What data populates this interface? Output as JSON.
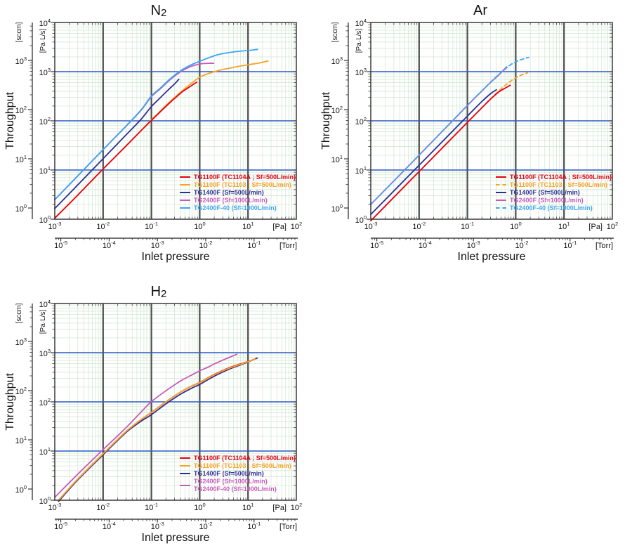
{
  "colors": {
    "red": "#e60012",
    "orange": "#f9a226",
    "navy": "#2e2e96",
    "magenta": "#c75ab8",
    "lightblue": "#3da4f2",
    "refline": "#2c59c3",
    "grid_minor": "#cde6cd",
    "grid_major": "#96c896",
    "decade_line": "#4d4d4d",
    "border": "#2b2b2b"
  },
  "axes": {
    "x_label": "Inlet pressure",
    "y_label": "Throughput",
    "x_unit_pa": "[Pa]",
    "x_unit_torr": "[Torr]",
    "y_unit_outer": "[sccm]",
    "y_unit_inner": "[Pa·L/s]",
    "x_ticks_pa": [
      -3,
      -2,
      -1,
      0,
      1,
      2
    ],
    "x_ticks_torr": [
      -5,
      -4,
      -3,
      -2,
      -1
    ],
    "y_ticks_inner": [
      0,
      1,
      2,
      3,
      4
    ],
    "y_ticks_outer": [
      0,
      1,
      2,
      3
    ],
    "sccm_factor": 1.69,
    "pa_per_torr": 133.322,
    "ref_lines_paLs": [
      10,
      100,
      1000
    ],
    "x_range_pa": [
      0.001,
      100
    ],
    "y_range_paLs": [
      1,
      10000
    ],
    "scale": "log-log",
    "grid": "on"
  },
  "chart_data": [
    {
      "id": "n2",
      "type": "line",
      "title_main": "N",
      "title_sub": "2",
      "legend": [
        {
          "label": "TG1100F (TC1104A ; Sf=500L/min)",
          "color": "red",
          "style": "solid"
        },
        {
          "label": "TG1100F (TC1103   ; Sf=500L/min)",
          "color": "orange",
          "style": "solid"
        },
        {
          "label": "TG1400F (Sf=500L/min)",
          "color": "navy",
          "style": "solid"
        },
        {
          "label": "TG2400F (Sf=1000L/min)",
          "color": "magenta",
          "style": "solid"
        },
        {
          "label": "TG2400F-40 (Sf=1000L/min)",
          "color": "lightblue",
          "style": "solid"
        }
      ],
      "series": [
        {
          "name": "TG2400F",
          "color": "magenta",
          "dash": "solid",
          "points": [
            [
              0.001,
              2.5
            ],
            [
              0.003,
              7.6
            ],
            [
              0.01,
              26
            ],
            [
              0.03,
              78
            ],
            [
              0.06,
              160
            ],
            [
              0.1,
              310
            ],
            [
              0.15,
              440
            ],
            [
              0.25,
              700
            ],
            [
              0.4,
              990
            ],
            [
              0.6,
              1230
            ],
            [
              0.8,
              1360
            ],
            [
              1.1,
              1450
            ],
            [
              1.5,
              1480
            ],
            [
              1.95,
              1480
            ]
          ]
        },
        {
          "name": "TG2400F-40",
          "color": "lightblue",
          "dash": "solid",
          "points": [
            [
              0.001,
              2.5
            ],
            [
              0.003,
              7.6
            ],
            [
              0.01,
              26
            ],
            [
              0.03,
              79
            ],
            [
              0.06,
              163
            ],
            [
              0.1,
              320
            ],
            [
              0.15,
              455
            ],
            [
              0.25,
              730
            ],
            [
              0.4,
              1040
            ],
            [
              0.6,
              1310
            ],
            [
              0.9,
              1560
            ],
            [
              1.3,
              1800
            ],
            [
              2,
              2100
            ],
            [
              3,
              2330
            ],
            [
              5,
              2520
            ],
            [
              8,
              2650
            ],
            [
              11,
              2720
            ],
            [
              15.7,
              2840
            ]
          ]
        },
        {
          "name": "TG1100F (TC1103)",
          "color": "orange",
          "dash": "solid",
          "points": [
            [
              0.001,
              1.05
            ],
            [
              0.003,
              3.1
            ],
            [
              0.01,
              10.5
            ],
            [
              0.03,
              31
            ],
            [
              0.06,
              62
            ],
            [
              0.1,
              105
            ],
            [
              0.15,
              155
            ],
            [
              0.22,
              225
            ],
            [
              0.35,
              340
            ],
            [
              0.6,
              530
            ],
            [
              1,
              770
            ],
            [
              1.6,
              930
            ],
            [
              2.5,
              1060
            ],
            [
              4,
              1170
            ],
            [
              7,
              1300
            ],
            [
              11,
              1400
            ],
            [
              17,
              1500
            ],
            [
              26,
              1650
            ]
          ]
        },
        {
          "name": "TG1400F",
          "color": "navy",
          "dash": "solid",
          "points": [
            [
              0.001,
              1.65
            ],
            [
              0.003,
              5.0
            ],
            [
              0.01,
              17
            ],
            [
              0.03,
              52
            ],
            [
              0.06,
              105
            ],
            [
              0.1,
              195
            ],
            [
              0.15,
              290
            ],
            [
              0.22,
              420
            ],
            [
              0.3,
              560
            ],
            [
              0.34,
              640
            ],
            [
              0.37,
              700
            ]
          ]
        },
        {
          "name": "TG1100F (TC1104A)",
          "color": "red",
          "dash": "solid",
          "points": [
            [
              0.001,
              1.05
            ],
            [
              0.003,
              3.1
            ],
            [
              0.01,
              10.5
            ],
            [
              0.03,
              31
            ],
            [
              0.06,
              62
            ],
            [
              0.1,
              102
            ],
            [
              0.15,
              150
            ],
            [
              0.22,
              215
            ],
            [
              0.32,
              300
            ],
            [
              0.45,
              400
            ],
            [
              0.6,
              480
            ],
            [
              0.75,
              560
            ],
            [
              0.87,
              610
            ]
          ]
        }
      ]
    },
    {
      "id": "ar",
      "type": "line",
      "title_main": "Ar",
      "title_sub": "",
      "legend": [
        {
          "label": "TG1100F (TC1104A ; Sf=500L/min)",
          "color": "red",
          "style": "solid"
        },
        {
          "label": "TG1100F (TC1103   ; Sf=500L/min)",
          "color": "orange",
          "style": "dashed"
        },
        {
          "label": "TG1400F (Sf=500L/min)",
          "color": "navy",
          "style": "solid"
        },
        {
          "label": "TG2400F (Sf=1000L/min)",
          "color": "magenta",
          "style": "solid"
        },
        {
          "label": "TG2400F-40 (Sf=1000L/min)",
          "color": "lightblue",
          "style": "dashed"
        }
      ],
      "series": [
        {
          "name": "TG2400F",
          "color": "magenta",
          "dash": "solid",
          "points": [
            [
              0.001,
              2.0
            ],
            [
              0.01,
              20
            ],
            [
              0.1,
              205
            ],
            [
              0.2,
              405
            ],
            [
              0.3,
              600
            ],
            [
              0.45,
              860
            ],
            [
              0.55,
              1060
            ],
            [
              0.65,
              1250
            ]
          ]
        },
        {
          "name": "TG2400F-40",
          "color": "lightblue",
          "dash": "dashed",
          "points": [
            [
              0.001,
              2.0
            ],
            [
              0.01,
              20
            ],
            [
              0.1,
              207
            ],
            [
              0.2,
              410
            ],
            [
              0.3,
              610
            ],
            [
              0.45,
              880
            ],
            [
              0.6,
              1120
            ],
            [
              0.8,
              1400
            ],
            [
              1.1,
              1650
            ],
            [
              1.45,
              1820
            ],
            [
              1.85,
              1950
            ]
          ]
        },
        {
          "name": "TG1100F (TC1103)",
          "color": "orange",
          "dash": "dashed",
          "points": [
            [
              0.001,
              0.93
            ],
            [
              0.01,
              9.3
            ],
            [
              0.1,
              93
            ],
            [
              0.2,
              186
            ],
            [
              0.3,
              278
            ],
            [
              0.5,
              450
            ],
            [
              0.8,
              650
            ],
            [
              1.2,
              820
            ],
            [
              1.75,
              950
            ]
          ]
        },
        {
          "name": "TG1100F (TC1104A)",
          "color": "red",
          "dash": "solid",
          "points": [
            [
              0.001,
              0.93
            ],
            [
              0.01,
              9.3
            ],
            [
              0.1,
              93
            ],
            [
              0.2,
              185
            ],
            [
              0.3,
              275
            ],
            [
              0.45,
              390
            ],
            [
              0.6,
              460
            ],
            [
              0.77,
              530
            ]
          ]
        },
        {
          "name": "TG1400F",
          "color": "navy",
          "dash": "solid",
          "points": [
            [
              0.001,
              1.25
            ],
            [
              0.01,
              12.5
            ],
            [
              0.1,
              125
            ],
            [
              0.2,
              248
            ],
            [
              0.3,
              355
            ],
            [
              0.4,
              430
            ]
          ]
        }
      ]
    },
    {
      "id": "h2",
      "type": "line",
      "title_main": "H",
      "title_sub": "2",
      "legend": [
        {
          "label": "TG1100F (TC1104A ; Sf=500L/min)",
          "color": "red",
          "style": "solid"
        },
        {
          "label": "TG1100F (TC1103   ; Sf=500L/min)",
          "color": "orange",
          "style": "solid"
        },
        {
          "label": "TG1400F (Sf=500L/min)",
          "color": "navy",
          "style": "solid"
        },
        {
          "label": "TG2400F (Sf=1000L/min)",
          "color": "magenta",
          "style": "shared-below"
        },
        {
          "label": "TG2400F-40 (Sf=1000L/min)",
          "color": "magenta",
          "style": "none"
        }
      ],
      "series": [
        {
          "name": "TG1100F (TC1104A)",
          "color": "red",
          "dash": "solid",
          "points": [
            [
              0.0012,
              1.0
            ],
            [
              0.003,
              2.7
            ],
            [
              0.01,
              8.8
            ],
            [
              0.03,
              25
            ],
            [
              0.06,
              43
            ],
            [
              0.1,
              61
            ],
            [
              0.2,
              100
            ],
            [
              0.4,
              158
            ],
            [
              0.7,
              212
            ],
            [
              1,
              248
            ],
            [
              2,
              360
            ],
            [
              4,
              490
            ],
            [
              7,
              590
            ],
            [
              10,
              660
            ],
            [
              14.8,
              760
            ]
          ]
        },
        {
          "name": "TG1400F",
          "color": "navy",
          "dash": "solid",
          "points": [
            [
              0.0012,
              0.95
            ],
            [
              0.003,
              2.6
            ],
            [
              0.01,
              8.4
            ],
            [
              0.03,
              24
            ],
            [
              0.06,
              40
            ],
            [
              0.1,
              55
            ],
            [
              0.2,
              91
            ],
            [
              0.4,
              143
            ],
            [
              0.7,
              192
            ],
            [
              1,
              226
            ],
            [
              2,
              332
            ],
            [
              4,
              458
            ],
            [
              7,
              565
            ],
            [
              10,
              645
            ],
            [
              15.5,
              775
            ]
          ]
        },
        {
          "name": "TG1100F (TC1103)",
          "color": "orange",
          "dash": "solid",
          "points": [
            [
              0.0012,
              1.0
            ],
            [
              0.003,
              2.7
            ],
            [
              0.01,
              8.8
            ],
            [
              0.03,
              25
            ],
            [
              0.06,
              43
            ],
            [
              0.1,
              61
            ],
            [
              0.2,
              100
            ],
            [
              0.4,
              158
            ],
            [
              0.7,
              210
            ],
            [
              1,
              245
            ],
            [
              2,
              355
            ],
            [
              4,
              480
            ],
            [
              7,
              580
            ],
            [
              10,
              655
            ],
            [
              14,
              740
            ]
          ]
        },
        {
          "name": "TG2400F / TG2400F-40",
          "color": "magenta",
          "dash": "solid",
          "points": [
            [
              0.001,
              1.15
            ],
            [
              0.003,
              3.4
            ],
            [
              0.01,
              10.7
            ],
            [
              0.03,
              30
            ],
            [
              0.06,
              61
            ],
            [
              0.1,
              101
            ],
            [
              0.2,
              168
            ],
            [
              0.4,
              266
            ],
            [
              0.7,
              356
            ],
            [
              1,
              428
            ],
            [
              1.5,
              510
            ],
            [
              2,
              590
            ],
            [
              3,
              705
            ],
            [
              4.5,
              835
            ],
            [
              5.9,
              930
            ]
          ]
        }
      ]
    }
  ]
}
